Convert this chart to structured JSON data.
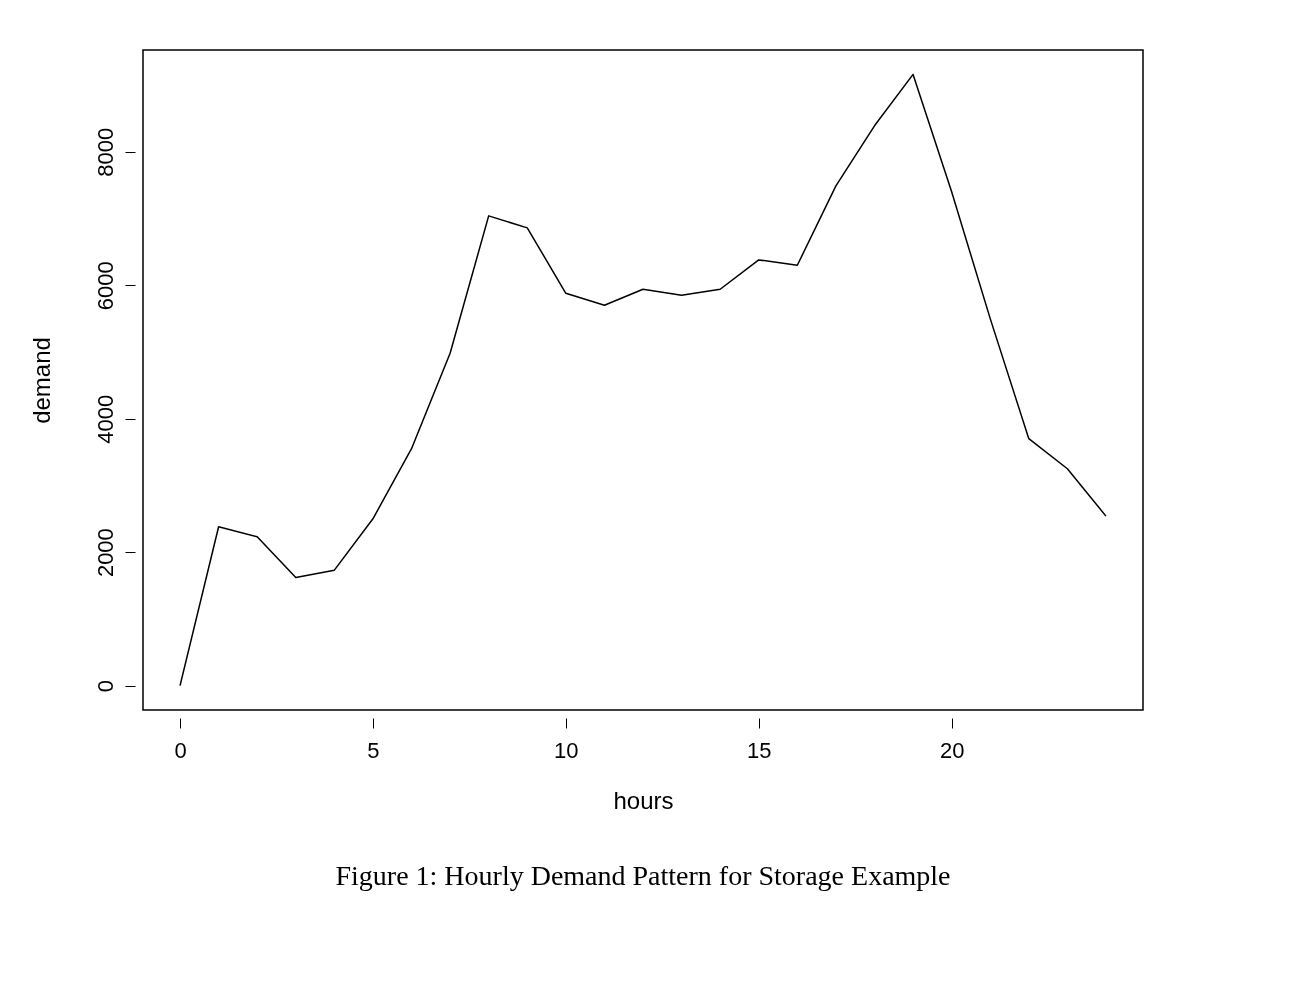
{
  "chart_data": {
    "type": "line",
    "xlabel": "hours",
    "ylabel": "demand",
    "x": [
      0,
      1,
      2,
      3,
      4,
      5,
      6,
      7,
      8,
      9,
      10,
      11,
      12,
      13,
      14,
      15,
      16,
      17,
      18,
      19,
      20,
      21,
      22,
      23,
      24
    ],
    "values": [
      0,
      2380,
      2230,
      1620,
      1730,
      2500,
      3550,
      4980,
      7040,
      6860,
      5880,
      5700,
      5940,
      5850,
      5940,
      6380,
      6300,
      7490,
      8390,
      9160,
      7400,
      5500,
      3700,
      3250,
      2540
    ],
    "color": "#000000",
    "xlim": [
      -0.96,
      24.96
    ],
    "ylim": [
      -366,
      9526
    ],
    "xticks": [
      0,
      5,
      10,
      15,
      20
    ],
    "yticks": [
      0,
      2000,
      4000,
      6000,
      8000
    ],
    "annotations": [
      "Figure 1: Hourly Demand Pattern for Storage Example"
    ]
  }
}
